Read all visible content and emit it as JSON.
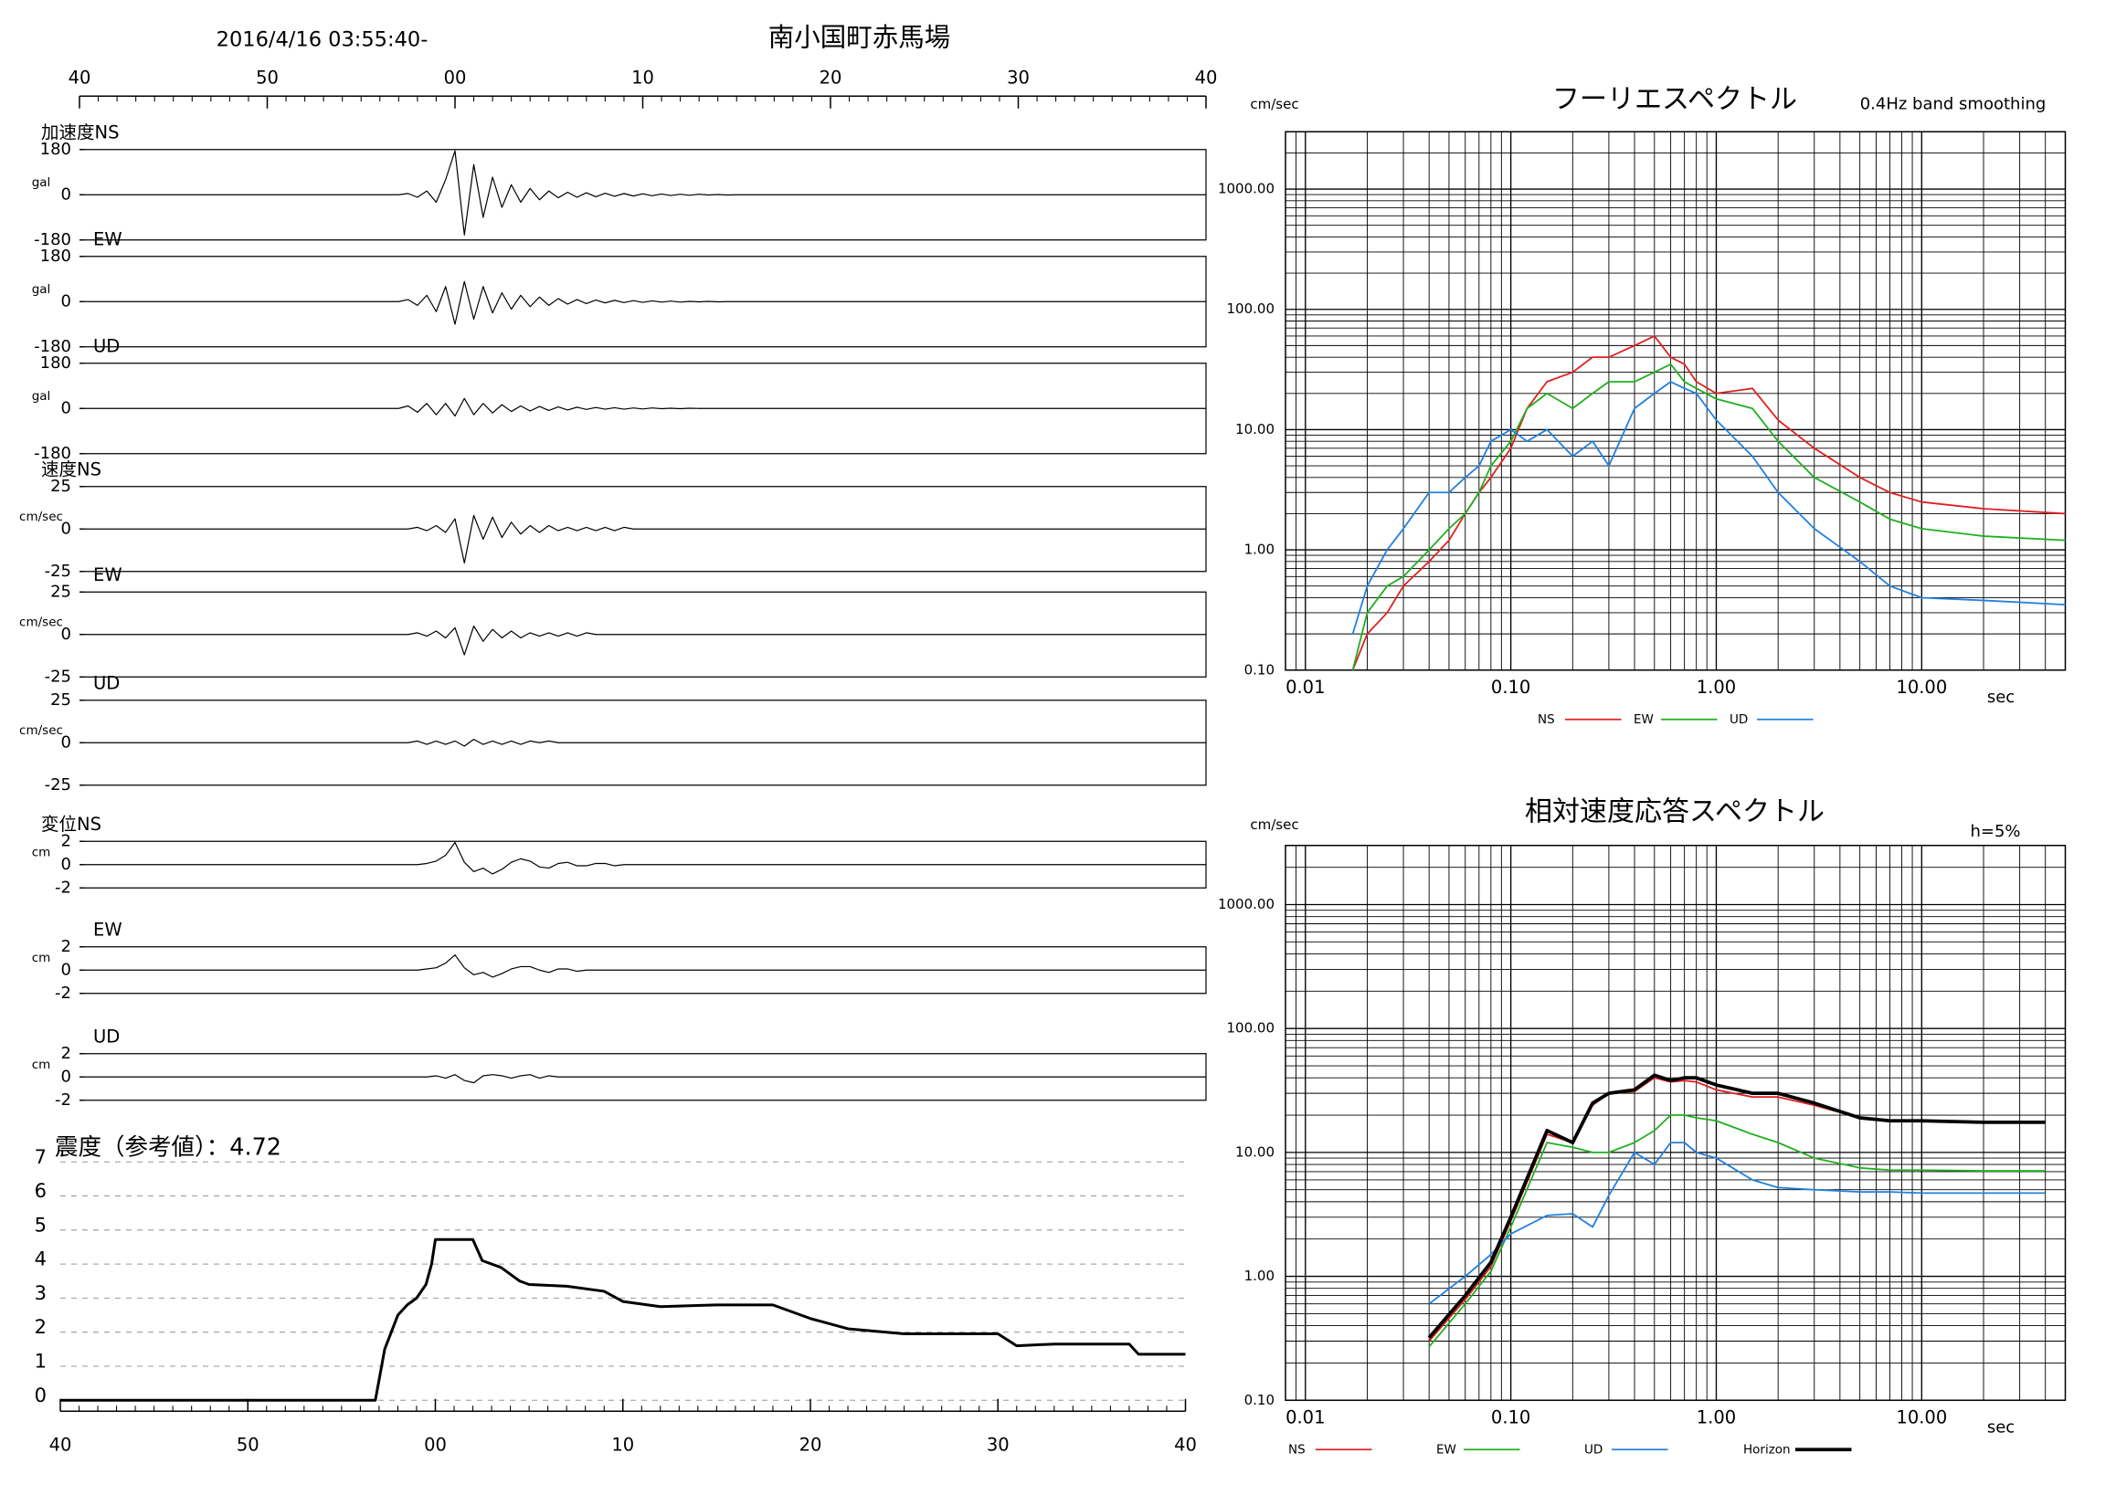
{
  "header": {
    "time": "2016/4/16 03:55:40-",
    "station": "南小国町赤馬場"
  },
  "chart_data": [
    {
      "type": "waveform",
      "xlim": [
        0,
        60
      ],
      "xticks": [
        {
          "value": 0,
          "label": "40"
        },
        {
          "value": 10,
          "label": "50"
        },
        {
          "value": 20,
          "label": "00"
        },
        {
          "value": 30,
          "label": "10"
        },
        {
          "value": 40,
          "label": "20"
        },
        {
          "value": 50,
          "label": "30"
        },
        {
          "value": 60,
          "label": "40"
        }
      ],
      "x": [
        0,
        17,
        17.5,
        18,
        18.5,
        19,
        19.5,
        20,
        20.5,
        21,
        21.5,
        22,
        22.5,
        23,
        23.5,
        24,
        24.5,
        25,
        25.5,
        26,
        26.5,
        27,
        27.5,
        28,
        28.5,
        29,
        29.5,
        30,
        30.5,
        31,
        31.5,
        32,
        32.5,
        33,
        33.5,
        34,
        34.5,
        35,
        60
      ],
      "series": [
        {
          "name": "加速度NS",
          "unit": "gal",
          "ylim": [
            -180,
            180
          ],
          "yticks": [
            -180,
            0,
            180
          ],
          "color": "#000000",
          "values": [
            0,
            0,
            5,
            -10,
            15,
            -30,
            60,
            175,
            -160,
            120,
            -90,
            70,
            -50,
            40,
            -30,
            25,
            -20,
            15,
            -12,
            10,
            -10,
            8,
            -8,
            6,
            -6,
            5,
            -5,
            4,
            -4,
            3,
            -3,
            2,
            -2,
            2,
            -1,
            1,
            -1,
            0,
            0
          ]
        },
        {
          "name": "EW",
          "unit": "gal",
          "ylim": [
            -180,
            180
          ],
          "yticks": [
            -180,
            0,
            180
          ],
          "color": "#000000",
          "values": [
            0,
            0,
            8,
            -15,
            25,
            -40,
            60,
            -90,
            80,
            -70,
            60,
            -45,
            35,
            -30,
            25,
            -20,
            18,
            -15,
            12,
            -10,
            8,
            -8,
            6,
            -5,
            5,
            -4,
            4,
            -3,
            3,
            -2,
            2,
            -2,
            1,
            -1,
            1,
            -1,
            0,
            0,
            0
          ]
        },
        {
          "name": "UD",
          "unit": "gal",
          "ylim": [
            -180,
            180
          ],
          "yticks": [
            -180,
            0,
            180
          ],
          "color": "#000000",
          "values": [
            0,
            0,
            10,
            -15,
            20,
            -25,
            20,
            -30,
            40,
            -25,
            20,
            -18,
            15,
            -12,
            10,
            -10,
            8,
            -8,
            6,
            -6,
            5,
            -4,
            4,
            -3,
            3,
            -3,
            2,
            -2,
            2,
            -1,
            1,
            -1,
            1,
            0,
            0,
            0,
            0,
            0,
            0
          ]
        },
        {
          "name": "速度NS",
          "unit": "cm/sec",
          "ylim": [
            -25,
            25
          ],
          "yticks": [
            -25,
            0,
            25
          ],
          "color": "#000000",
          "values": [
            0,
            0,
            0,
            1,
            -1,
            2,
            -2,
            6,
            -20,
            8,
            -6,
            7,
            -5,
            4,
            -3,
            2,
            -2,
            2,
            -1,
            1,
            -1,
            1,
            -1,
            1,
            -1,
            1,
            0,
            0,
            0,
            0,
            0,
            0,
            0,
            0,
            0,
            0,
            0,
            0,
            0
          ]
        },
        {
          "name": "EW",
          "unit": "cm/sec",
          "ylim": [
            -25,
            25
          ],
          "yticks": [
            -25,
            0,
            25
          ],
          "color": "#000000",
          "values": [
            0,
            0,
            0,
            1,
            -1,
            2,
            -2,
            4,
            -12,
            5,
            -4,
            3,
            -2,
            2,
            -2,
            1,
            -1,
            1,
            -1,
            1,
            -1,
            1,
            0,
            0,
            0,
            0,
            0,
            0,
            0,
            0,
            0,
            0,
            0,
            0,
            0,
            0,
            0,
            0,
            0
          ]
        },
        {
          "name": "UD",
          "unit": "cm/sec",
          "ylim": [
            -25,
            25
          ],
          "yticks": [
            -25,
            0,
            25
          ],
          "color": "#000000",
          "values": [
            0,
            0,
            0,
            1,
            -1,
            1,
            -1,
            1,
            -2,
            2,
            -1,
            1,
            -1,
            1,
            -1,
            1,
            0,
            1,
            0,
            0,
            0,
            0,
            0,
            0,
            0,
            0,
            0,
            0,
            0,
            0,
            0,
            0,
            0,
            0,
            0,
            0,
            0,
            0,
            0
          ]
        },
        {
          "name": "変位NS",
          "unit": "cm",
          "ylim": [
            -2,
            2
          ],
          "yticks": [
            -2,
            0,
            2
          ],
          "color": "#000000",
          "values": [
            0,
            0,
            0,
            0,
            0.1,
            0.3,
            0.8,
            1.9,
            0.2,
            -0.6,
            -0.3,
            -0.8,
            -0.4,
            0.2,
            0.5,
            0.3,
            -0.2,
            -0.3,
            0.1,
            0.2,
            -0.1,
            -0.1,
            0.1,
            0.1,
            -0.1,
            0,
            0,
            0,
            0,
            0,
            0,
            0,
            0,
            0,
            0,
            0,
            0,
            0,
            0
          ]
        },
        {
          "name": "EW",
          "unit": "cm",
          "ylim": [
            -2,
            2
          ],
          "yticks": [
            -2,
            0,
            2
          ],
          "color": "#000000",
          "values": [
            0,
            0,
            0,
            0,
            0.1,
            0.2,
            0.6,
            1.3,
            0.2,
            -0.4,
            -0.2,
            -0.6,
            -0.3,
            0.1,
            0.3,
            0.3,
            0,
            -0.2,
            0.1,
            0.1,
            -0.1,
            0,
            0,
            0,
            0,
            0,
            0,
            0,
            0,
            0,
            0,
            0,
            0,
            0,
            0,
            0,
            0,
            0,
            0
          ]
        },
        {
          "name": "UD",
          "unit": "cm",
          "ylim": [
            -2,
            2
          ],
          "yticks": [
            -2,
            0,
            2
          ],
          "color": "#000000",
          "values": [
            0,
            0,
            0,
            0,
            0,
            0.1,
            -0.1,
            0.2,
            -0.3,
            -0.5,
            0.1,
            0.2,
            0.1,
            -0.1,
            0.1,
            0.2,
            -0.1,
            0.1,
            0,
            0,
            0,
            0,
            0,
            0,
            0,
            0,
            0,
            0,
            0,
            0,
            0,
            0,
            0,
            0,
            0,
            0,
            0,
            0,
            0
          ]
        }
      ]
    },
    {
      "type": "line",
      "title": "震度（参考値）：4.72",
      "xlim": [
        0,
        60
      ],
      "xticks": [
        {
          "value": 0,
          "label": "40"
        },
        {
          "value": 10,
          "label": "50"
        },
        {
          "value": 20,
          "label": "00"
        },
        {
          "value": 30,
          "label": "10"
        },
        {
          "value": 40,
          "label": "20"
        },
        {
          "value": 50,
          "label": "30"
        },
        {
          "value": 60,
          "label": "40"
        }
      ],
      "ylim": [
        0,
        7
      ],
      "yticks": [
        0,
        1,
        2,
        3,
        4,
        5,
        6,
        7
      ],
      "grid": true,
      "x": [
        0,
        16.8,
        17.3,
        18,
        18.5,
        19,
        19.5,
        19.8,
        20,
        22,
        22.5,
        23.5,
        24.5,
        25,
        27,
        29,
        30,
        32,
        35,
        38,
        40,
        42,
        45,
        50,
        51,
        53,
        57,
        57.5,
        60
      ],
      "series": [
        {
          "color": "#000000",
          "values": [
            0,
            0,
            1.5,
            2.5,
            2.8,
            3,
            3.4,
            4,
            4.72,
            4.72,
            4.1,
            3.9,
            3.5,
            3.4,
            3.35,
            3.2,
            2.9,
            2.75,
            2.8,
            2.8,
            2.4,
            2.1,
            1.95,
            1.95,
            1.6,
            1.65,
            1.65,
            1.35,
            1.35
          ]
        }
      ]
    },
    {
      "type": "line",
      "title": "フーリエスペクトル",
      "subtitle": "0.4Hz band smoothing",
      "x_label": "sec",
      "y_label": "cm/sec",
      "xscale": "log",
      "yscale": "log",
      "grid": true,
      "legend": "bottom",
      "xlim": [
        0.008,
        50
      ],
      "xticks": [
        {
          "value": 0.01,
          "label": "0.01"
        },
        {
          "value": 0.1,
          "label": "0.10"
        },
        {
          "value": 1,
          "label": "1.00"
        },
        {
          "value": 10,
          "label": "10.00"
        }
      ],
      "ylim": [
        0.1,
        3000
      ],
      "yticks": [
        {
          "value": 0.1,
          "label": "0.10"
        },
        {
          "value": 1,
          "label": "1.00"
        },
        {
          "value": 10,
          "label": "10.00"
        },
        {
          "value": 100,
          "label": "100.00"
        },
        {
          "value": 1000,
          "label": "1000.00"
        }
      ],
      "x": [
        0.017,
        0.02,
        0.025,
        0.03,
        0.04,
        0.05,
        0.06,
        0.07,
        0.08,
        0.1,
        0.12,
        0.15,
        0.2,
        0.25,
        0.3,
        0.4,
        0.5,
        0.6,
        0.7,
        0.8,
        1,
        1.5,
        2,
        3,
        5,
        7,
        10,
        20,
        50
      ],
      "series": [
        {
          "name": "NS",
          "color": "#e02020",
          "values": [
            0.1,
            0.2,
            0.3,
            0.5,
            0.8,
            1.2,
            2,
            3,
            4,
            7,
            15,
            25,
            30,
            40,
            40,
            50,
            60,
            40,
            35,
            25,
            20,
            22,
            12,
            7,
            4,
            3,
            2.5,
            2.2,
            2
          ]
        },
        {
          "name": "EW",
          "color": "#20b020",
          "values": [
            0.1,
            0.3,
            0.5,
            0.6,
            1,
            1.5,
            2,
            3,
            5,
            8,
            15,
            20,
            15,
            20,
            25,
            25,
            30,
            35,
            25,
            22,
            18,
            15,
            8,
            4,
            2.5,
            1.8,
            1.5,
            1.3,
            1.2
          ]
        },
        {
          "name": "UD",
          "color": "#2080e0",
          "values": [
            0.2,
            0.5,
            1,
            1.5,
            3,
            3,
            4,
            5,
            8,
            10,
            8,
            10,
            6,
            8,
            5,
            15,
            20,
            25,
            22,
            20,
            12,
            6,
            3,
            1.5,
            0.8,
            0.5,
            0.4,
            0.38,
            0.35
          ]
        }
      ]
    },
    {
      "type": "line",
      "title": "相対速度応答スペクトル",
      "subtitle": "h=5%",
      "x_label": "sec",
      "y_label": "cm/sec",
      "xscale": "log",
      "yscale": "log",
      "grid": true,
      "legend": "bottom",
      "xlim": [
        0.008,
        50
      ],
      "xticks": [
        {
          "value": 0.01,
          "label": "0.01"
        },
        {
          "value": 0.1,
          "label": "0.10"
        },
        {
          "value": 1,
          "label": "1.00"
        },
        {
          "value": 10,
          "label": "10.00"
        }
      ],
      "ylim": [
        0.1,
        3000
      ],
      "yticks": [
        {
          "value": 0.1,
          "label": "0.10"
        },
        {
          "value": 1,
          "label": "1.00"
        },
        {
          "value": 10,
          "label": "10.00"
        },
        {
          "value": 100,
          "label": "100.00"
        },
        {
          "value": 1000,
          "label": "1000.00"
        }
      ],
      "x": [
        0.04,
        0.06,
        0.08,
        0.1,
        0.15,
        0.2,
        0.25,
        0.3,
        0.4,
        0.5,
        0.6,
        0.7,
        0.8,
        1,
        1.5,
        2,
        3,
        5,
        7,
        10,
        20,
        40
      ],
      "series": [
        {
          "name": "NS",
          "color": "#e02020",
          "values": [
            0.3,
            0.65,
            1.2,
            2.8,
            14,
            12,
            24,
            30,
            31,
            40,
            37,
            38,
            37,
            32,
            28,
            28,
            24,
            19,
            18,
            18,
            17.5,
            17.5
          ]
        },
        {
          "name": "EW",
          "color": "#20b020",
          "values": [
            0.27,
            0.6,
            1.1,
            2.5,
            12,
            11,
            10,
            10,
            12,
            15,
            20,
            20,
            19,
            18,
            14,
            12,
            9,
            7.5,
            7.2,
            7.2,
            7.1,
            7.1
          ]
        },
        {
          "name": "UD",
          "color": "#2080e0",
          "values": [
            0.6,
            1,
            1.5,
            2.2,
            3.1,
            3.2,
            2.5,
            4.5,
            10,
            8,
            12,
            12,
            10,
            9,
            6,
            5.2,
            5,
            4.8,
            4.8,
            4.7,
            4.7,
            4.7
          ]
        },
        {
          "name": "Horizon",
          "color": "#000000",
          "width": 2.5,
          "values": [
            0.32,
            0.7,
            1.3,
            3,
            15,
            12,
            25,
            30,
            32,
            42,
            38,
            40,
            40,
            35,
            30,
            30,
            25,
            19,
            18,
            18,
            17.5,
            17.5
          ]
        }
      ]
    }
  ]
}
